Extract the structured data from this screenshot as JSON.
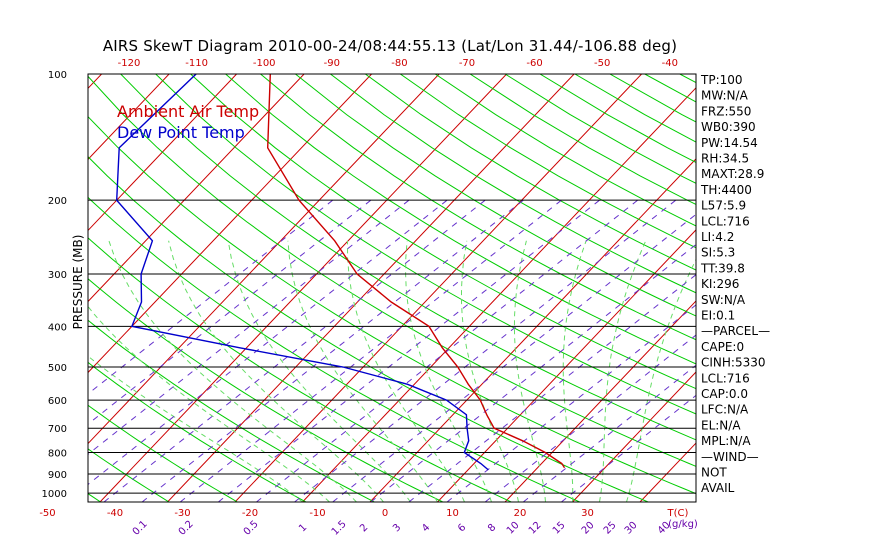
{
  "chart_data": {
    "type": "line",
    "title": "AIRS SkewT Diagram 2010-00-24/08:44:55.13 (Lat/Lon 31.44/-106.88 deg)",
    "ylabel": "PRESSURE (MB)",
    "xlabel": "T(C)",
    "mixing_ratio_unit": "(g/kg)",
    "legend": [
      {
        "label": "Ambient Air Temp",
        "color": "#cc0000"
      },
      {
        "label": "Dew Point Temp",
        "color": "#0000cc"
      }
    ],
    "pressure_ticks": [
      100,
      200,
      300,
      400,
      500,
      600,
      700,
      800,
      900,
      1000
    ],
    "bottom_temp_ticks": [
      -50,
      -40,
      -30,
      -20,
      -10,
      0,
      10,
      20,
      30
    ],
    "top_temp_ticks": [
      -120,
      -110,
      -100,
      -90,
      -80,
      -70,
      -60,
      -50,
      -40
    ],
    "mixing_ratio_ticks": [
      "0.1",
      "0.2",
      "0.5",
      "1",
      "1.5",
      "2",
      "3",
      "4",
      "6",
      "8",
      "10",
      "12",
      "15",
      "20",
      "25",
      "30",
      "40"
    ],
    "series": [
      {
        "name": "Ambient Air Temp",
        "color": "#cc0000",
        "points": [
          [
            100,
            -75
          ],
          [
            150,
            -65
          ],
          [
            200,
            -53
          ],
          [
            250,
            -42
          ],
          [
            300,
            -34
          ],
          [
            350,
            -25
          ],
          [
            400,
            -16
          ],
          [
            450,
            -11
          ],
          [
            500,
            -6
          ],
          [
            550,
            -2
          ],
          [
            600,
            2
          ],
          [
            650,
            5
          ],
          [
            700,
            8
          ],
          [
            750,
            14
          ],
          [
            800,
            19
          ],
          [
            850,
            23
          ],
          [
            870,
            24
          ]
        ]
      },
      {
        "name": "Dew Point Temp",
        "color": "#0000cc",
        "points": [
          [
            100,
            -86
          ],
          [
            150,
            -87
          ],
          [
            200,
            -80
          ],
          [
            250,
            -69
          ],
          [
            300,
            -66
          ],
          [
            350,
            -62
          ],
          [
            400,
            -60
          ],
          [
            450,
            -41
          ],
          [
            500,
            -23
          ],
          [
            550,
            -11
          ],
          [
            600,
            -3
          ],
          [
            650,
            2
          ],
          [
            700,
            4
          ],
          [
            750,
            6
          ],
          [
            800,
            7
          ],
          [
            850,
            11
          ],
          [
            880,
            13
          ]
        ]
      }
    ],
    "ylim": [
      100,
      1000
    ],
    "xlim": [
      -50,
      40
    ],
    "grid": true,
    "legend_position": "top-left"
  },
  "indices": [
    "TP:100",
    "MW:N/A",
    "FRZ:550",
    "WB0:390",
    "PW:14.54",
    "RH:34.5",
    "MAXT:28.9",
    "TH:4400",
    "L57:5.9",
    "LCL:716",
    "LI:4.2",
    "SI:5.3",
    "TT:39.8",
    "KI:296",
    "SW:N/A",
    "EI:0.1",
    "—PARCEL—",
    "CAPE:0",
    "CINH:5330",
    "LCL:716",
    "CAP:0.0",
    "LFC:N/A",
    "EL:N/A",
    "MPL:N/A",
    "—WIND—",
    "NOT",
    "AVAIL"
  ],
  "colors": {
    "isotherm": "#cc0000",
    "dry_adiabat": "#00cc00",
    "moist_adiabat": "#66dd66",
    "mixing_ratio": "#6633cc",
    "temp": "#cc0000",
    "dewpoint": "#0000cc"
  }
}
